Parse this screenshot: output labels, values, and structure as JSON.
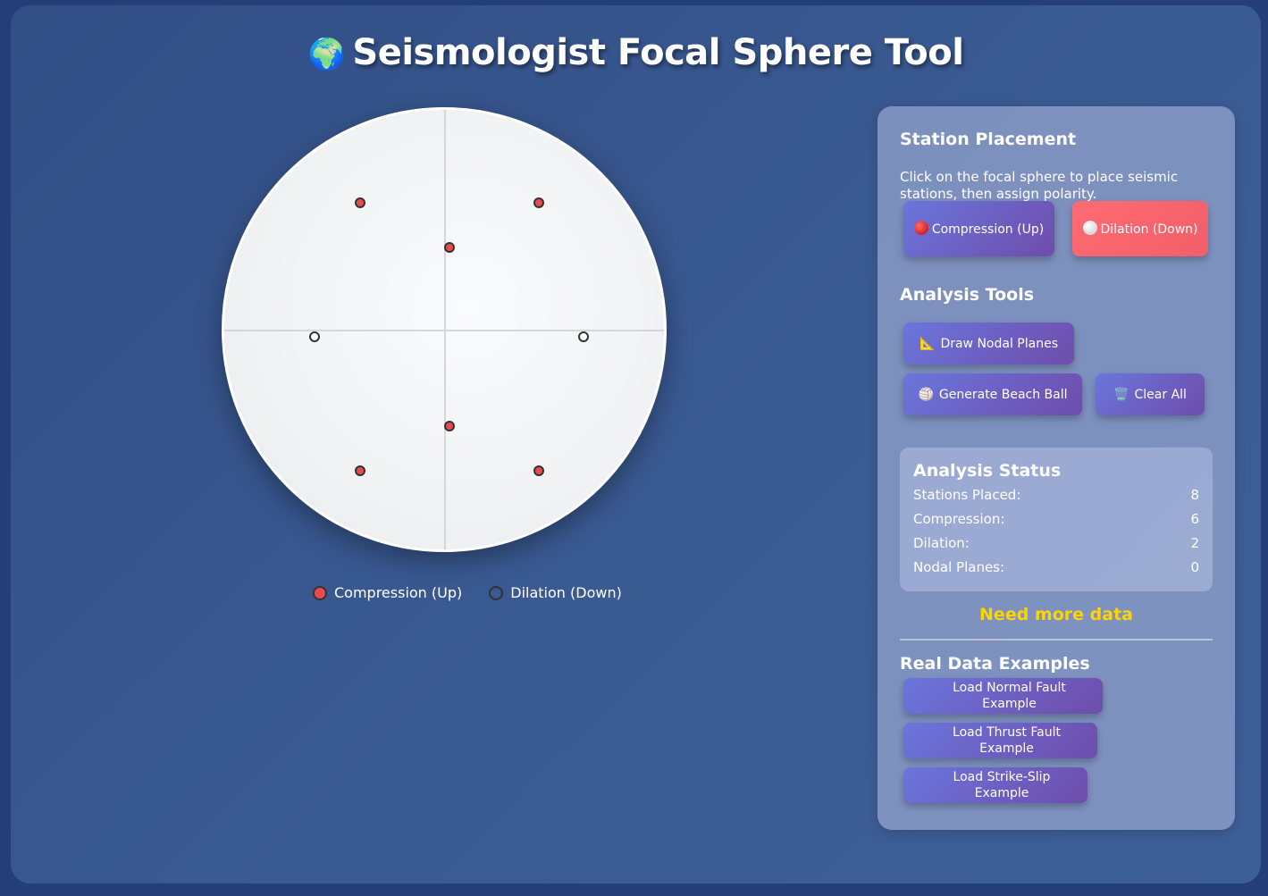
{
  "header": {
    "globe_icon": "🌍",
    "title": "Seismologist Focal Sphere Tool"
  },
  "stations": [
    {
      "polarity": "compression"
    },
    {
      "polarity": "compression"
    },
    {
      "polarity": "compression"
    },
    {
      "polarity": "dilation"
    },
    {
      "polarity": "dilation"
    },
    {
      "polarity": "compression"
    },
    {
      "polarity": "compression"
    },
    {
      "polarity": "compression"
    }
  ],
  "legend": {
    "compression": "Compression (Up)",
    "dilation": "Dilation (Down)"
  },
  "panel": {
    "placement": {
      "title": "Station Placement",
      "description": "Click on the focal sphere to place seismic stations, then assign polarity.",
      "compression_button": "Compression (Up)",
      "dilation_button": "Dilation (Down)"
    },
    "tools": {
      "title": "Analysis Tools",
      "draw_nodal": "Draw Nodal Planes",
      "beach_ball": "Generate Beach Ball",
      "clear_all": "Clear All",
      "icons": {
        "draw_nodal": "📐",
        "beach_ball": "🏐",
        "clear_all": "🗑️"
      }
    },
    "status": {
      "title": "Analysis Status",
      "rows": [
        {
          "label": "Stations Placed:",
          "value": "8"
        },
        {
          "label": "Compression:",
          "value": "6"
        },
        {
          "label": "Dilation:",
          "value": "2"
        },
        {
          "label": "Nodal Planes:",
          "value": "0"
        }
      ],
      "message": "Need more data"
    },
    "examples": {
      "title": "Real Data Examples",
      "normal": "Load Normal Fault Example",
      "thrust": "Load Thrust Fault Example",
      "strike_slip": "Load Strike-Slip Example"
    }
  },
  "colors": {
    "compression": "#e84a52",
    "dilation": "#ffffff",
    "status_warning": "#ffd400"
  }
}
